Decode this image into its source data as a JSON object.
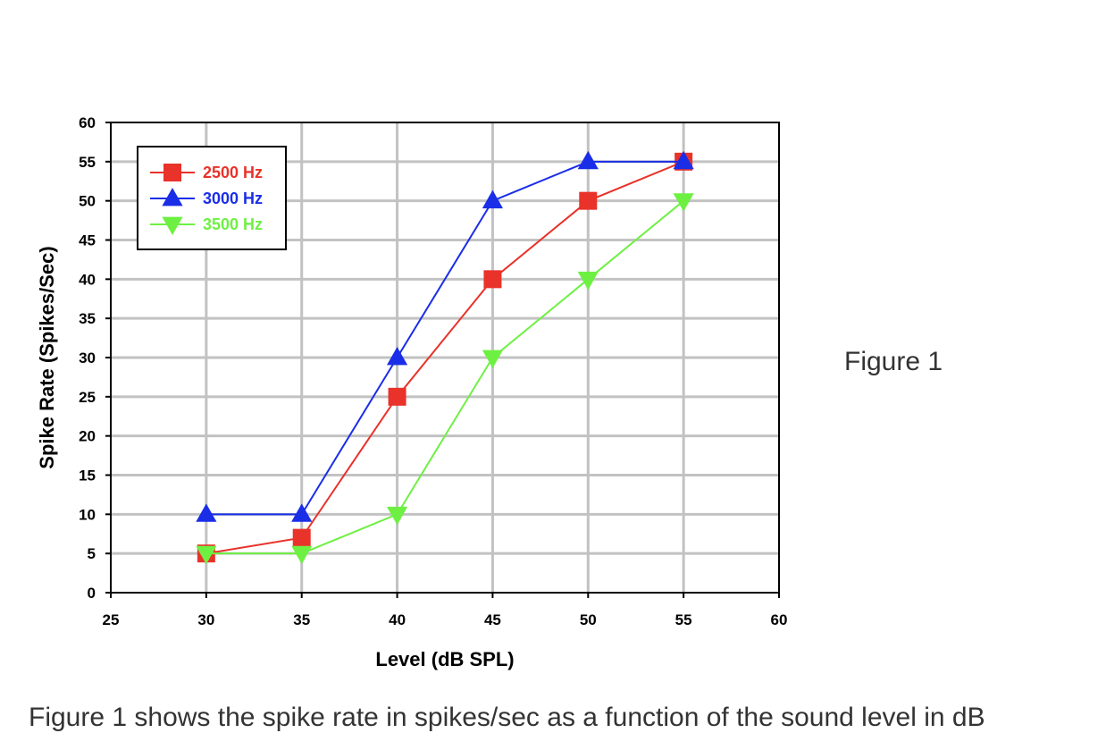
{
  "figure_label": "Figure 1",
  "caption": "Figure 1 shows the spike rate in spikes/sec as a function of the sound level in dB",
  "chart_data": {
    "type": "line",
    "xlabel": "Level (dB SPL)",
    "ylabel": "Spike Rate (Spikes/Sec)",
    "xlim": [
      25,
      60
    ],
    "ylim": [
      0,
      60
    ],
    "xticks": [
      25,
      30,
      35,
      40,
      45,
      50,
      55,
      60
    ],
    "yticks": [
      0,
      5,
      10,
      15,
      20,
      25,
      30,
      35,
      40,
      45,
      50,
      55,
      60
    ],
    "grid": true,
    "legend_position": "top-left",
    "x": [
      30,
      35,
      40,
      45,
      50,
      55
    ],
    "series": [
      {
        "name": "2500 Hz",
        "color": "#e8322a",
        "marker": "square",
        "values": [
          5,
          7,
          25,
          40,
          50,
          55
        ]
      },
      {
        "name": "3000 Hz",
        "color": "#1a2ee8",
        "marker": "triangle-up",
        "values": [
          10,
          10,
          30,
          50,
          55,
          55
        ]
      },
      {
        "name": "3500 Hz",
        "color": "#6ef043",
        "marker": "triangle-down",
        "values": [
          5,
          5,
          10,
          30,
          40,
          50
        ]
      }
    ]
  }
}
